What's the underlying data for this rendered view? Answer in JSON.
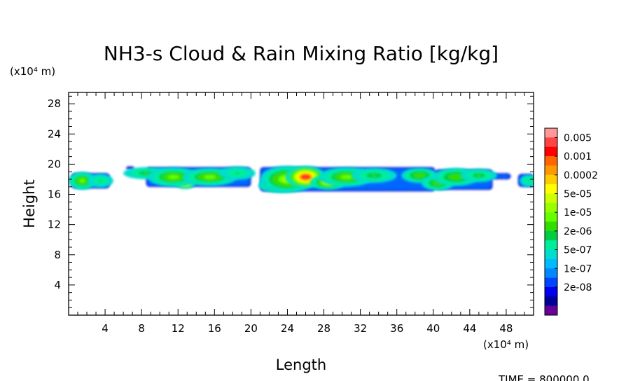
{
  "chart_data": {
    "type": "heatmap",
    "title": "NH3-s Cloud & Rain Mixing Ratio [kg/kg]",
    "xlabel": "Length",
    "ylabel": "Height",
    "x_unit": "(x10⁴ m)",
    "y_unit": "(x10⁴ m)",
    "xlim": [
      0,
      51
    ],
    "ylim": [
      0,
      29.5
    ],
    "x_ticks": [
      4,
      8,
      12,
      16,
      20,
      24,
      28,
      32,
      36,
      40,
      44,
      48
    ],
    "y_ticks": [
      4,
      8,
      12,
      16,
      20,
      24,
      28
    ],
    "time_label": "TIME = 800000.0",
    "colorbar": {
      "levels": [
        "0.005",
        "0.001",
        "0.0002",
        "5e-05",
        "1e-05",
        "2e-06",
        "5e-07",
        "1e-07",
        "2e-08"
      ],
      "colors": [
        "#ff9999",
        "#ff4444",
        "#ff0000",
        "#ff6600",
        "#ff9900",
        "#ffcc00",
        "#ffff00",
        "#ccff00",
        "#99ff00",
        "#66ff00",
        "#33dd00",
        "#00cc44",
        "#00ee99",
        "#00ddcc",
        "#00bbff",
        "#0088ff",
        "#0044ff",
        "#0000ee",
        "#000099",
        "#660099"
      ]
    },
    "field_blobs": [
      {
        "x": 1.5,
        "y": 17.8,
        "w": 1.5,
        "h": 1.2,
        "level": 0.55
      },
      {
        "x": 3.5,
        "y": 17.8,
        "w": 1.4,
        "h": 0.9,
        "level": 0.4
      },
      {
        "x": 8.5,
        "y": 18.8,
        "w": 2.5,
        "h": 0.8,
        "level": 0.45
      },
      {
        "x": 12.8,
        "y": 17.6,
        "w": 1.2,
        "h": 0.9,
        "level": 0.85
      },
      {
        "x": 11.5,
        "y": 18.3,
        "w": 2.8,
        "h": 1.3,
        "level": 0.55
      },
      {
        "x": 15.5,
        "y": 18.3,
        "w": 3.0,
        "h": 1.2,
        "level": 0.55
      },
      {
        "x": 18.5,
        "y": 18.8,
        "w": 2.0,
        "h": 0.9,
        "level": 0.4
      },
      {
        "x": 23.0,
        "y": 17.2,
        "w": 2.2,
        "h": 1.0,
        "level": 0.6
      },
      {
        "x": 24.0,
        "y": 18.0,
        "w": 3.0,
        "h": 1.8,
        "level": 0.6
      },
      {
        "x": 26.0,
        "y": 18.3,
        "w": 2.2,
        "h": 1.5,
        "level": 0.95
      },
      {
        "x": 28.5,
        "y": 17.6,
        "w": 2.0,
        "h": 1.0,
        "level": 0.65
      },
      {
        "x": 30.5,
        "y": 18.3,
        "w": 3.0,
        "h": 1.3,
        "level": 0.55
      },
      {
        "x": 33.5,
        "y": 18.5,
        "w": 2.5,
        "h": 1.0,
        "level": 0.45
      },
      {
        "x": 38.5,
        "y": 18.5,
        "w": 2.0,
        "h": 1.0,
        "level": 0.5
      },
      {
        "x": 40.5,
        "y": 17.5,
        "w": 1.8,
        "h": 1.0,
        "level": 0.5
      },
      {
        "x": 42.5,
        "y": 18.3,
        "w": 2.5,
        "h": 1.2,
        "level": 0.5
      },
      {
        "x": 45.0,
        "y": 18.5,
        "w": 2.0,
        "h": 0.9,
        "level": 0.45
      },
      {
        "x": 50.5,
        "y": 17.8,
        "w": 1.0,
        "h": 0.8,
        "level": 0.4
      }
    ],
    "field_envelope": [
      {
        "x0": 0.3,
        "x1": 4.5,
        "ybot": 16.8,
        "ytop": 18.8
      },
      {
        "x0": 6.3,
        "x1": 7.2,
        "ybot": 19.3,
        "ytop": 19.7
      },
      {
        "x0": 8.5,
        "x1": 20.0,
        "ybot": 17.0,
        "ytop": 19.6
      },
      {
        "x0": 21.0,
        "x1": 40.2,
        "ybot": 16.4,
        "ytop": 19.6
      },
      {
        "x0": 40.2,
        "x1": 46.5,
        "ybot": 16.6,
        "ytop": 19.3
      },
      {
        "x0": 46.5,
        "x1": 48.5,
        "ybot": 18.0,
        "ytop": 18.8
      },
      {
        "x0": 49.3,
        "x1": 51.0,
        "ybot": 17.0,
        "ytop": 18.7
      }
    ]
  }
}
